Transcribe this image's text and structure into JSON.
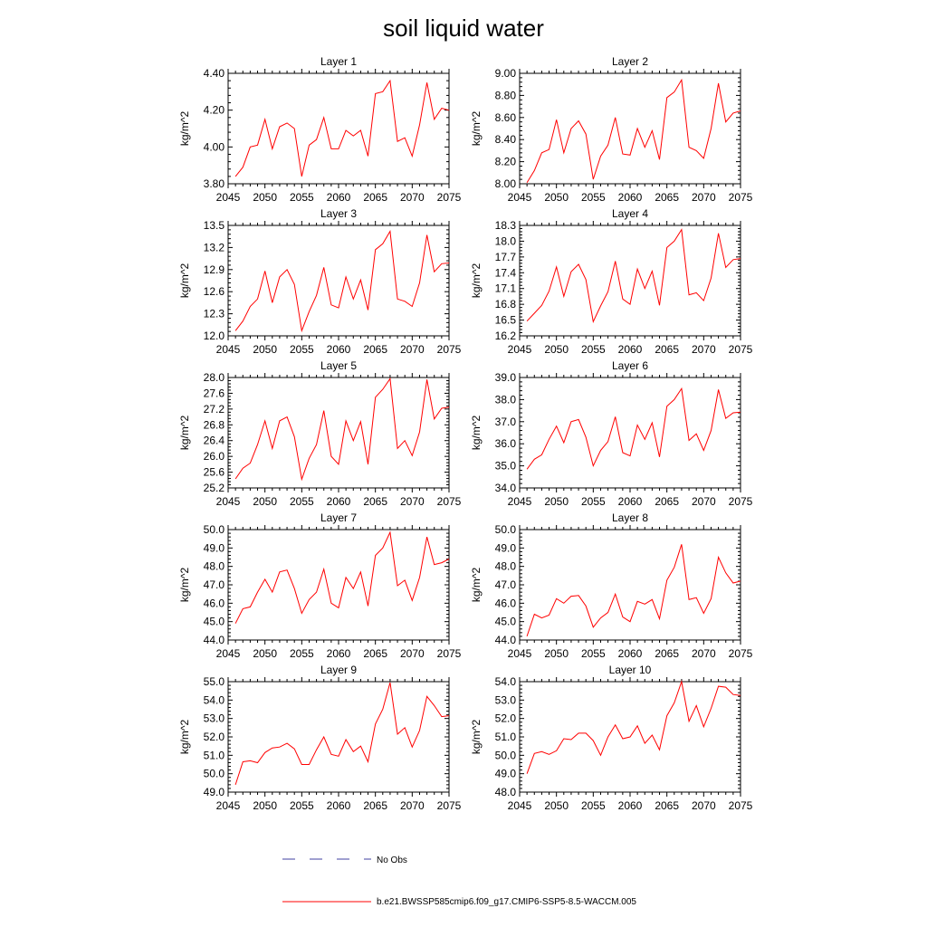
{
  "figure": {
    "title": "soil liquid water"
  },
  "legend": {
    "items": [
      {
        "label": "No Obs",
        "color": "#4040a0",
        "style": "dashed"
      },
      {
        "label": "b.e21.BWSSP585cmip6.f09_g17.CMIP6-SSP5-8.5-WACCM.005",
        "color": "#ff0000",
        "style": "solid"
      }
    ]
  },
  "chart_data": [
    {
      "type": "line",
      "title": "Layer 1",
      "ylabel": "kg/m^2",
      "xlim": [
        2045,
        2075
      ],
      "ylim": [
        3.8,
        4.4
      ],
      "yticks": [
        3.8,
        4.0,
        4.2,
        4.4
      ],
      "ytick_labels": [
        "3.80",
        "4.00",
        "4.20",
        "4.40"
      ],
      "xticks": [
        2045,
        2050,
        2055,
        2060,
        2065,
        2070,
        2075
      ],
      "series": [
        {
          "color": "#ff0000",
          "x": [
            2046,
            2047,
            2048,
            2049,
            2050,
            2051,
            2052,
            2053,
            2054,
            2055,
            2056,
            2057,
            2058,
            2059,
            2060,
            2061,
            2062,
            2063,
            2064,
            2065,
            2066,
            2067,
            2068,
            2069,
            2070,
            2071,
            2072,
            2073,
            2074,
            2075
          ],
          "values": [
            3.84,
            3.89,
            4.0,
            4.01,
            4.15,
            3.99,
            4.11,
            4.13,
            4.1,
            3.84,
            4.01,
            4.04,
            4.16,
            3.99,
            3.99,
            4.09,
            4.06,
            4.09,
            3.95,
            4.29,
            4.3,
            4.36,
            4.03,
            4.05,
            3.95,
            4.12,
            4.35,
            4.15,
            4.21,
            4.2
          ]
        }
      ]
    },
    {
      "type": "line",
      "title": "Layer 2",
      "ylabel": "kg/m^2",
      "xlim": [
        2045,
        2075
      ],
      "ylim": [
        8.0,
        9.0
      ],
      "yticks": [
        8.0,
        8.2,
        8.4,
        8.6,
        8.8,
        9.0
      ],
      "ytick_labels": [
        "8.00",
        "8.20",
        "8.40",
        "8.60",
        "8.80",
        "9.00"
      ],
      "xticks": [
        2045,
        2050,
        2055,
        2060,
        2065,
        2070,
        2075
      ],
      "series": [
        {
          "color": "#ff0000",
          "x": [
            2046,
            2047,
            2048,
            2049,
            2050,
            2051,
            2052,
            2053,
            2054,
            2055,
            2056,
            2057,
            2058,
            2059,
            2060,
            2061,
            2062,
            2063,
            2064,
            2065,
            2066,
            2067,
            2068,
            2069,
            2070,
            2071,
            2072,
            2073,
            2074,
            2075
          ],
          "values": [
            8.01,
            8.12,
            8.28,
            8.31,
            8.58,
            8.28,
            8.5,
            8.57,
            8.45,
            8.04,
            8.25,
            8.35,
            8.6,
            8.27,
            8.26,
            8.5,
            8.33,
            8.48,
            8.22,
            8.78,
            8.83,
            8.94,
            8.33,
            8.3,
            8.23,
            8.5,
            8.91,
            8.56,
            8.64,
            8.66
          ]
        }
      ]
    },
    {
      "type": "line",
      "title": "Layer 3",
      "ylabel": "kg/m^2",
      "xlim": [
        2045,
        2075
      ],
      "ylim": [
        12.0,
        13.5
      ],
      "yticks": [
        12.0,
        12.3,
        12.6,
        12.9,
        13.2,
        13.5
      ],
      "ytick_labels": [
        "12.0",
        "12.3",
        "12.6",
        "12.9",
        "13.2",
        "13.5"
      ],
      "xticks": [
        2045,
        2050,
        2055,
        2060,
        2065,
        2070,
        2075
      ],
      "series": [
        {
          "color": "#ff0000",
          "x": [
            2046,
            2047,
            2048,
            2049,
            2050,
            2051,
            2052,
            2053,
            2054,
            2055,
            2056,
            2057,
            2058,
            2059,
            2060,
            2061,
            2062,
            2063,
            2064,
            2065,
            2066,
            2067,
            2068,
            2069,
            2070,
            2071,
            2072,
            2073,
            2074,
            2075
          ],
          "values": [
            12.07,
            12.2,
            12.4,
            12.5,
            12.88,
            12.45,
            12.8,
            12.9,
            12.7,
            12.07,
            12.33,
            12.55,
            12.93,
            12.42,
            12.38,
            12.8,
            12.5,
            12.76,
            12.35,
            13.17,
            13.25,
            13.42,
            12.5,
            12.47,
            12.4,
            12.72,
            13.37,
            12.87,
            12.98,
            12.99
          ]
        }
      ]
    },
    {
      "type": "line",
      "title": "Layer 4",
      "ylabel": "kg/m^2",
      "xlim": [
        2045,
        2075
      ],
      "ylim": [
        16.2,
        18.3
      ],
      "yticks": [
        16.2,
        16.5,
        16.8,
        17.1,
        17.4,
        17.7,
        18.0,
        18.3
      ],
      "ytick_labels": [
        "16.2",
        "16.5",
        "16.8",
        "17.1",
        "17.4",
        "17.7",
        "18.0",
        "18.3"
      ],
      "xticks": [
        2045,
        2050,
        2055,
        2060,
        2065,
        2070,
        2075
      ],
      "series": [
        {
          "color": "#ff0000",
          "x": [
            2046,
            2047,
            2048,
            2049,
            2050,
            2051,
            2052,
            2053,
            2054,
            2055,
            2056,
            2057,
            2058,
            2059,
            2060,
            2061,
            2062,
            2063,
            2064,
            2065,
            2066,
            2067,
            2068,
            2069,
            2070,
            2071,
            2072,
            2073,
            2074,
            2075
          ],
          "values": [
            16.48,
            16.63,
            16.78,
            17.05,
            17.51,
            16.95,
            17.42,
            17.56,
            17.27,
            16.47,
            16.77,
            17.04,
            17.62,
            16.9,
            16.8,
            17.47,
            17.1,
            17.43,
            16.78,
            17.88,
            18.0,
            18.22,
            16.98,
            17.02,
            16.87,
            17.3,
            18.15,
            17.5,
            17.65,
            17.67
          ]
        }
      ]
    },
    {
      "type": "line",
      "title": "Layer 5",
      "ylabel": "kg/m^2",
      "xlim": [
        2045,
        2075
      ],
      "ylim": [
        25.2,
        28.0
      ],
      "yticks": [
        25.2,
        25.6,
        26.0,
        26.4,
        26.8,
        27.2,
        27.6,
        28.0
      ],
      "ytick_labels": [
        "25.2",
        "25.6",
        "26.0",
        "26.4",
        "26.8",
        "27.2",
        "27.6",
        "28.0"
      ],
      "xticks": [
        2045,
        2050,
        2055,
        2060,
        2065,
        2070,
        2075
      ],
      "series": [
        {
          "color": "#ff0000",
          "x": [
            2046,
            2047,
            2048,
            2049,
            2050,
            2051,
            2052,
            2053,
            2054,
            2055,
            2056,
            2057,
            2058,
            2059,
            2060,
            2061,
            2062,
            2063,
            2064,
            2065,
            2066,
            2067,
            2068,
            2069,
            2070,
            2071,
            2072,
            2073,
            2074,
            2075
          ],
          "values": [
            25.43,
            25.7,
            25.83,
            26.3,
            26.9,
            26.2,
            26.9,
            27.0,
            26.5,
            25.42,
            25.95,
            26.3,
            27.16,
            26.0,
            25.8,
            26.9,
            26.4,
            26.88,
            25.8,
            27.5,
            27.7,
            27.97,
            26.2,
            26.4,
            26.02,
            26.62,
            27.95,
            26.95,
            27.22,
            27.25
          ]
        }
      ]
    },
    {
      "type": "line",
      "title": "Layer 6",
      "ylabel": "kg/m^2",
      "xlim": [
        2045,
        2075
      ],
      "ylim": [
        34.0,
        39.0
      ],
      "yticks": [
        34.0,
        35.0,
        36.0,
        37.0,
        38.0,
        39.0
      ],
      "ytick_labels": [
        "34.0",
        "35.0",
        "36.0",
        "37.0",
        "38.0",
        "39.0"
      ],
      "xticks": [
        2045,
        2050,
        2055,
        2060,
        2065,
        2070,
        2075
      ],
      "series": [
        {
          "color": "#ff0000",
          "x": [
            2046,
            2047,
            2048,
            2049,
            2050,
            2051,
            2052,
            2053,
            2054,
            2055,
            2056,
            2057,
            2058,
            2059,
            2060,
            2061,
            2062,
            2063,
            2064,
            2065,
            2066,
            2067,
            2068,
            2069,
            2070,
            2071,
            2072,
            2073,
            2074,
            2075
          ],
          "values": [
            34.85,
            35.3,
            35.5,
            36.2,
            36.8,
            36.05,
            37.0,
            37.1,
            36.3,
            35.0,
            35.7,
            36.1,
            37.22,
            35.6,
            35.45,
            36.85,
            36.2,
            36.95,
            35.4,
            37.7,
            38.0,
            38.5,
            36.15,
            36.45,
            35.7,
            36.6,
            38.45,
            37.15,
            37.4,
            37.43
          ]
        }
      ]
    },
    {
      "type": "line",
      "title": "Layer 7",
      "ylabel": "kg/m^2",
      "xlim": [
        2045,
        2075
      ],
      "ylim": [
        44.0,
        50.0
      ],
      "yticks": [
        44.0,
        45.0,
        46.0,
        47.0,
        48.0,
        49.0,
        50.0
      ],
      "ytick_labels": [
        "44.0",
        "45.0",
        "46.0",
        "47.0",
        "48.0",
        "49.0",
        "50.0"
      ],
      "xticks": [
        2045,
        2050,
        2055,
        2060,
        2065,
        2070,
        2075
      ],
      "series": [
        {
          "color": "#ff0000",
          "x": [
            2046,
            2047,
            2048,
            2049,
            2050,
            2051,
            2052,
            2053,
            2054,
            2055,
            2056,
            2057,
            2058,
            2059,
            2060,
            2061,
            2062,
            2063,
            2064,
            2065,
            2066,
            2067,
            2068,
            2069,
            2070,
            2071,
            2072,
            2073,
            2074,
            2075
          ],
          "values": [
            44.9,
            45.7,
            45.8,
            46.6,
            47.3,
            46.6,
            47.7,
            47.8,
            46.8,
            45.45,
            46.2,
            46.6,
            47.85,
            46.0,
            45.75,
            47.4,
            46.8,
            47.7,
            45.85,
            48.6,
            49.0,
            49.85,
            46.95,
            47.25,
            46.15,
            47.4,
            49.6,
            48.1,
            48.2,
            48.4
          ]
        }
      ]
    },
    {
      "type": "line",
      "title": "Layer 8",
      "ylabel": "kg/m^2",
      "xlim": [
        2045,
        2075
      ],
      "ylim": [
        44.0,
        50.0
      ],
      "yticks": [
        44.0,
        45.0,
        46.0,
        47.0,
        48.0,
        49.0,
        50.0
      ],
      "ytick_labels": [
        "44.0",
        "45.0",
        "46.0",
        "47.0",
        "48.0",
        "49.0",
        "50.0"
      ],
      "xticks": [
        2045,
        2050,
        2055,
        2060,
        2065,
        2070,
        2075
      ],
      "series": [
        {
          "color": "#ff0000",
          "x": [
            2046,
            2047,
            2048,
            2049,
            2050,
            2051,
            2052,
            2053,
            2054,
            2055,
            2056,
            2057,
            2058,
            2059,
            2060,
            2061,
            2062,
            2063,
            2064,
            2065,
            2066,
            2067,
            2068,
            2069,
            2070,
            2071,
            2072,
            2073,
            2074,
            2075
          ],
          "values": [
            44.2,
            45.4,
            45.2,
            45.35,
            46.25,
            46.0,
            46.38,
            46.42,
            45.85,
            44.7,
            45.2,
            45.5,
            46.5,
            45.25,
            45.0,
            46.1,
            45.95,
            46.2,
            45.15,
            47.25,
            47.95,
            49.2,
            46.2,
            46.3,
            45.45,
            46.25,
            48.5,
            47.65,
            47.1,
            47.2
          ]
        }
      ]
    },
    {
      "type": "line",
      "title": "Layer 9",
      "ylabel": "kg/m^2",
      "xlim": [
        2045,
        2075
      ],
      "ylim": [
        49.0,
        55.0
      ],
      "yticks": [
        49.0,
        50.0,
        51.0,
        52.0,
        53.0,
        54.0,
        55.0
      ],
      "ytick_labels": [
        "49.0",
        "50.0",
        "51.0",
        "52.0",
        "53.0",
        "54.0",
        "55.0"
      ],
      "xticks": [
        2045,
        2050,
        2055,
        2060,
        2065,
        2070,
        2075
      ],
      "series": [
        {
          "color": "#ff0000",
          "x": [
            2046,
            2047,
            2048,
            2049,
            2050,
            2051,
            2052,
            2053,
            2054,
            2055,
            2056,
            2057,
            2058,
            2059,
            2060,
            2061,
            2062,
            2063,
            2064,
            2065,
            2066,
            2067,
            2068,
            2069,
            2070,
            2071,
            2072,
            2073,
            2074,
            2075
          ],
          "values": [
            49.4,
            50.65,
            50.7,
            50.6,
            51.15,
            51.4,
            51.45,
            51.65,
            51.35,
            50.5,
            50.5,
            51.3,
            52.0,
            51.05,
            50.95,
            51.85,
            51.2,
            51.5,
            50.65,
            52.7,
            53.5,
            54.95,
            52.15,
            52.5,
            51.45,
            52.35,
            54.2,
            53.7,
            53.1,
            53.15
          ]
        }
      ]
    },
    {
      "type": "line",
      "title": "Layer 10",
      "ylabel": "kg/m^2",
      "xlim": [
        2045,
        2075
      ],
      "ylim": [
        48.0,
        54.0
      ],
      "yticks": [
        48.0,
        49.0,
        50.0,
        51.0,
        52.0,
        53.0,
        54.0
      ],
      "ytick_labels": [
        "48.0",
        "49.0",
        "50.0",
        "51.0",
        "52.0",
        "53.0",
        "54.0"
      ],
      "xticks": [
        2045,
        2050,
        2055,
        2060,
        2065,
        2070,
        2075
      ],
      "series": [
        {
          "color": "#ff0000",
          "x": [
            2046,
            2047,
            2048,
            2049,
            2050,
            2051,
            2052,
            2053,
            2054,
            2055,
            2056,
            2057,
            2058,
            2059,
            2060,
            2061,
            2062,
            2063,
            2064,
            2065,
            2066,
            2067,
            2068,
            2069,
            2070,
            2071,
            2072,
            2073,
            2074,
            2075
          ],
          "values": [
            49.0,
            50.1,
            50.2,
            50.05,
            50.25,
            50.9,
            50.85,
            51.2,
            51.2,
            50.8,
            50.0,
            51.0,
            51.65,
            50.9,
            51.0,
            51.6,
            50.65,
            51.1,
            50.3,
            52.15,
            52.85,
            54.0,
            51.85,
            52.7,
            51.55,
            52.55,
            53.75,
            53.7,
            53.3,
            53.25
          ]
        }
      ]
    }
  ]
}
